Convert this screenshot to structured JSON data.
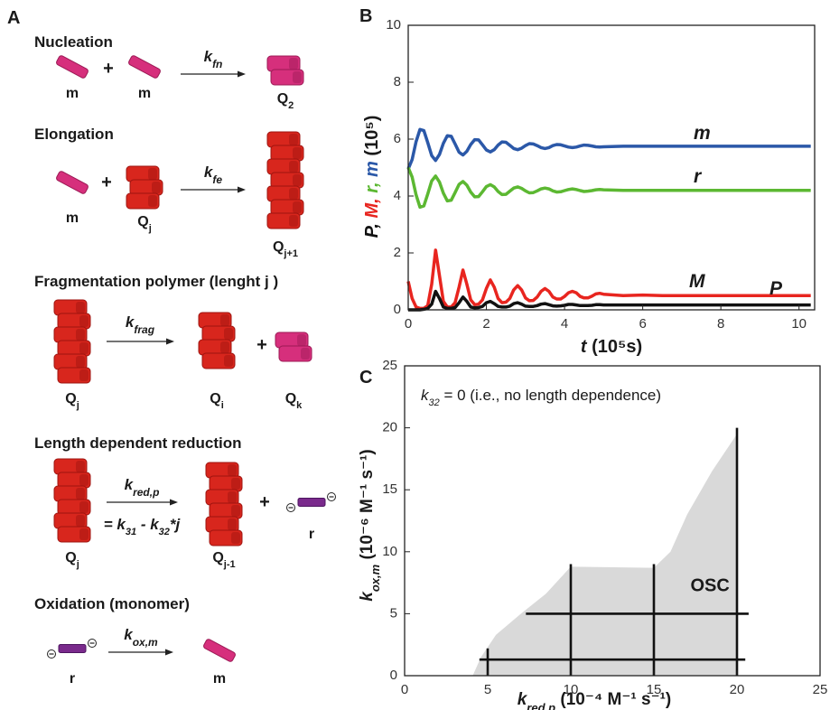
{
  "scheme": {
    "panel": "A",
    "plus": "+",
    "reactions": [
      {
        "title": "Nucleation",
        "reactants": [
          {
            "label": "m"
          },
          {
            "label": "m"
          }
        ],
        "rate": {
          "label": "k",
          "sub": "fn"
        },
        "products": [
          {
            "label": "Q",
            "sub": "2"
          }
        ]
      },
      {
        "title": "Elongation",
        "reactants": [
          {
            "label": "m"
          },
          {
            "label": "Q",
            "sub": "j"
          }
        ],
        "rate": {
          "label": "k",
          "sub": "fe"
        },
        "products": [
          {
            "label": "Q",
            "sub": "j+1"
          }
        ]
      },
      {
        "title": "Fragmentation polymer (lenght j )",
        "reactants": [
          {
            "label": "Q",
            "sub": "j"
          }
        ],
        "rate": {
          "label": "k",
          "sub": "frag"
        },
        "products": [
          {
            "label": "Q",
            "sub": "i"
          },
          {
            "label": "Q",
            "sub": "k"
          }
        ]
      },
      {
        "title": "Length dependent reduction",
        "reactants": [
          {
            "label": "Q",
            "sub": "j"
          }
        ],
        "rate": {
          "label": "k",
          "sub": "red,p"
        },
        "rate_expression": [
          {
            "text": "= k",
            "sub": "31"
          },
          {
            "text": " - k",
            "sub": "32"
          },
          {
            "text": "*j"
          }
        ],
        "products": [
          {
            "label": "Q",
            "sub": "j-1"
          },
          {
            "label": "r"
          }
        ]
      },
      {
        "title": "Oxidation (monomer)",
        "reactants": [
          {
            "label": "r"
          }
        ],
        "rate": {
          "label": "k",
          "sub": "ox,m"
        },
        "products": [
          {
            "label": "m"
          }
        ]
      }
    ]
  },
  "chart_data": [
    {
      "type": "line",
      "panel": "B",
      "x": [
        0,
        0.1,
        0.2,
        0.3,
        0.4,
        0.5,
        0.6,
        0.7,
        0.8,
        0.9,
        1.0,
        1.1,
        1.2,
        1.3,
        1.4,
        1.5,
        1.6,
        1.7,
        1.8,
        1.9,
        2.0,
        2.1,
        2.2,
        2.3,
        2.4,
        2.5,
        2.6,
        2.7,
        2.8,
        2.9,
        3.0,
        3.1,
        3.2,
        3.3,
        3.4,
        3.5,
        3.6,
        3.7,
        3.8,
        3.9,
        4.0,
        4.1,
        4.2,
        4.3,
        4.4,
        4.5,
        4.6,
        4.7,
        4.8,
        4.9,
        5.0,
        5.5,
        6,
        6.5,
        7,
        7.5,
        8,
        8.5,
        9,
        9.5,
        10,
        10.3
      ],
      "xlim": [
        0,
        10.4
      ],
      "xticks": [
        0,
        2,
        4,
        6,
        8,
        10
      ],
      "ylim": [
        0,
        10
      ],
      "yticks": [
        0,
        2,
        4,
        6,
        8,
        10
      ],
      "x_label": "t",
      "x_label_unit": " (10⁵s)",
      "y_label_parts": [
        {
          "text": "P, ",
          "color": "#111111"
        },
        {
          "text": "M, ",
          "color": "#e8251f"
        },
        {
          "text": "r, ",
          "color": "#5cb832"
        },
        {
          "text": "m",
          "color": "#2b58a8"
        }
      ],
      "y_label_unit": "  (10⁵)",
      "series": [
        {
          "name": "m",
          "color": "#2b58a8",
          "values": [
            4.95,
            5.28,
            5.91,
            6.34,
            6.3,
            5.88,
            5.42,
            5.25,
            5.46,
            5.85,
            6.12,
            6.1,
            5.83,
            5.54,
            5.44,
            5.57,
            5.81,
            5.98,
            5.97,
            5.8,
            5.62,
            5.55,
            5.63,
            5.79,
            5.9,
            5.89,
            5.78,
            5.67,
            5.63,
            5.68,
            5.77,
            5.84,
            5.83,
            5.77,
            5.7,
            5.67,
            5.7,
            5.77,
            5.81,
            5.8,
            5.76,
            5.72,
            5.7,
            5.72,
            5.76,
            5.79,
            5.78,
            5.76,
            5.73,
            5.72,
            5.73,
            5.75,
            5.75,
            5.75,
            5.75,
            5.75,
            5.75,
            5.75,
            5.75,
            5.75,
            5.75,
            5.75
          ]
        },
        {
          "name": "r",
          "color": "#5cb832",
          "values": [
            5.0,
            4.67,
            4.04,
            3.61,
            3.65,
            4.07,
            4.53,
            4.7,
            4.49,
            4.1,
            3.83,
            3.85,
            4.12,
            4.41,
            4.51,
            4.38,
            4.14,
            3.97,
            3.98,
            4.15,
            4.33,
            4.4,
            4.32,
            4.16,
            4.05,
            4.06,
            4.17,
            4.28,
            4.32,
            4.27,
            4.18,
            4.11,
            4.12,
            4.18,
            4.25,
            4.28,
            4.25,
            4.18,
            4.14,
            4.15,
            4.19,
            4.23,
            4.25,
            4.23,
            4.19,
            4.16,
            4.17,
            4.19,
            4.22,
            4.23,
            4.22,
            4.2,
            4.2,
            4.2,
            4.2,
            4.2,
            4.2,
            4.2,
            4.2,
            4.2,
            4.2,
            4.2
          ]
        },
        {
          "name": "M",
          "color": "#e8251f",
          "values": [
            1.0,
            0.4,
            0.1,
            0.05,
            0.05,
            0.15,
            0.9,
            2.1,
            1.2,
            0.3,
            0.1,
            0.1,
            0.25,
            0.8,
            1.4,
            0.9,
            0.35,
            0.18,
            0.2,
            0.35,
            0.75,
            1.05,
            0.8,
            0.4,
            0.25,
            0.27,
            0.4,
            0.7,
            0.85,
            0.7,
            0.42,
            0.32,
            0.33,
            0.45,
            0.65,
            0.75,
            0.65,
            0.45,
            0.38,
            0.38,
            0.47,
            0.6,
            0.65,
            0.6,
            0.47,
            0.42,
            0.42,
            0.48,
            0.56,
            0.58,
            0.55,
            0.5,
            0.52,
            0.5,
            0.5,
            0.5,
            0.5,
            0.5,
            0.5,
            0.5,
            0.5,
            0.5
          ]
        },
        {
          "name": "P",
          "color": "#111111",
          "values": [
            0,
            0,
            0,
            0,
            0.02,
            0.05,
            0.2,
            0.65,
            0.4,
            0.1,
            0.05,
            0.05,
            0.08,
            0.25,
            0.45,
            0.3,
            0.1,
            0.07,
            0.08,
            0.12,
            0.25,
            0.3,
            0.22,
            0.12,
            0.1,
            0.1,
            0.13,
            0.22,
            0.25,
            0.2,
            0.13,
            0.12,
            0.12,
            0.15,
            0.2,
            0.22,
            0.18,
            0.14,
            0.13,
            0.14,
            0.16,
            0.19,
            0.19,
            0.17,
            0.15,
            0.15,
            0.15,
            0.16,
            0.18,
            0.18,
            0.17,
            0.17,
            0.17,
            0.17,
            0.17,
            0.17,
            0.17,
            0.17,
            0.17,
            0.17,
            0.17,
            0.17
          ]
        }
      ]
    },
    {
      "type": "area",
      "panel": "C",
      "xlim": [
        0,
        25
      ],
      "xticks": [
        0,
        5,
        10,
        15,
        20,
        25
      ],
      "ylim": [
        0,
        25
      ],
      "yticks": [
        0,
        5,
        10,
        15,
        20,
        25
      ],
      "note": {
        "label": "k",
        "sub": "32",
        "text": " =  0 (i.e., no length dependence)"
      },
      "region_label": "OSC",
      "region": {
        "color": "#d9d9d9",
        "x": [
          4.1,
          4.6,
          5.5,
          7,
          8.5,
          10,
          15,
          16,
          17,
          18.5,
          20,
          20
        ],
        "y": [
          0,
          1.5,
          3.3,
          5,
          6.6,
          8.8,
          8.7,
          10,
          13,
          16.5,
          19.5,
          0
        ]
      },
      "lines": [
        {
          "color": "#111111",
          "x": [
            4.5,
            20.5
          ],
          "y": [
            1.3,
            1.3
          ]
        },
        {
          "color": "#111111",
          "x": [
            7.3,
            20.7
          ],
          "y": [
            5,
            5
          ]
        },
        {
          "color": "#111111",
          "x": [
            5,
            5
          ],
          "y": [
            0,
            2.2
          ]
        },
        {
          "color": "#111111",
          "x": [
            10,
            10
          ],
          "y": [
            0,
            9
          ]
        },
        {
          "color": "#111111",
          "x": [
            15,
            15
          ],
          "y": [
            0,
            9
          ]
        },
        {
          "color": "#111111",
          "x": [
            20,
            20
          ],
          "y": [
            0,
            20
          ]
        }
      ],
      "x_label": {
        "label": "k",
        "sub": "red,p",
        "unit": " (10⁻⁴ M⁻¹ s⁻¹)"
      },
      "y_label": {
        "label": "k",
        "sub": "ox,m",
        "unit": "  (10⁻⁶ M⁻¹ s⁻¹)"
      }
    }
  ]
}
